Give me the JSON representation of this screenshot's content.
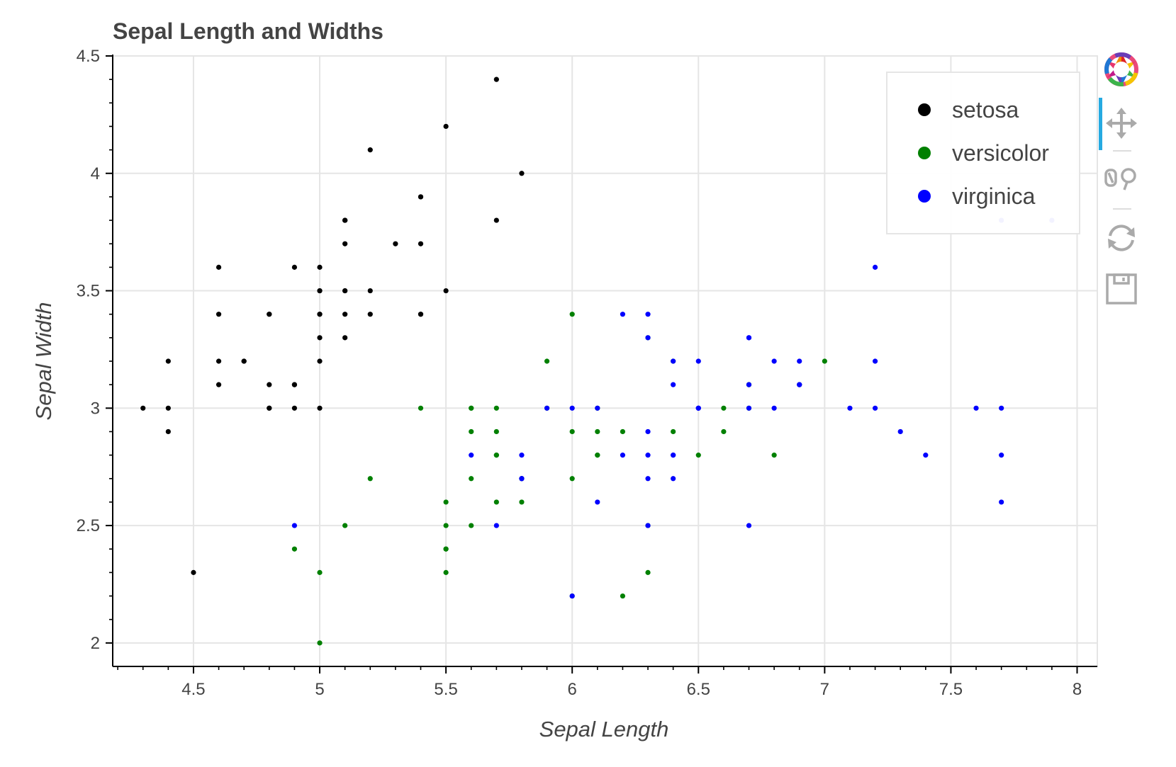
{
  "chart_data": {
    "type": "scatter",
    "title": "Sepal Length and Widths",
    "xlabel": "Sepal Length",
    "ylabel": "Sepal Width",
    "xlim": [
      4.18,
      8.08
    ],
    "ylim": [
      1.9,
      4.5
    ],
    "xticks": [
      "4.5",
      "5",
      "5.5",
      "6",
      "6.5",
      "7",
      "7.5",
      "8"
    ],
    "yticks": [
      "2",
      "2.5",
      "3",
      "3.5",
      "4",
      "4.5"
    ],
    "grid": true,
    "legend_position": "top-right",
    "series": [
      {
        "name": "setosa",
        "color": "#000000",
        "points": [
          [
            5.1,
            3.5
          ],
          [
            4.9,
            3.0
          ],
          [
            4.7,
            3.2
          ],
          [
            4.6,
            3.1
          ],
          [
            5.0,
            3.6
          ],
          [
            5.4,
            3.9
          ],
          [
            4.6,
            3.4
          ],
          [
            5.0,
            3.4
          ],
          [
            4.4,
            2.9
          ],
          [
            4.9,
            3.1
          ],
          [
            5.4,
            3.7
          ],
          [
            4.8,
            3.4
          ],
          [
            4.8,
            3.0
          ],
          [
            4.3,
            3.0
          ],
          [
            5.8,
            4.0
          ],
          [
            5.7,
            4.4
          ],
          [
            5.4,
            3.9
          ],
          [
            5.1,
            3.5
          ],
          [
            5.7,
            3.8
          ],
          [
            5.1,
            3.8
          ],
          [
            5.4,
            3.4
          ],
          [
            5.1,
            3.7
          ],
          [
            4.6,
            3.6
          ],
          [
            5.1,
            3.3
          ],
          [
            4.8,
            3.4
          ],
          [
            5.0,
            3.0
          ],
          [
            5.0,
            3.4
          ],
          [
            5.2,
            3.5
          ],
          [
            5.2,
            3.4
          ],
          [
            4.7,
            3.2
          ],
          [
            4.8,
            3.1
          ],
          [
            5.4,
            3.4
          ],
          [
            5.2,
            4.1
          ],
          [
            5.5,
            4.2
          ],
          [
            4.9,
            3.1
          ],
          [
            5.0,
            3.2
          ],
          [
            5.5,
            3.5
          ],
          [
            4.9,
            3.6
          ],
          [
            4.4,
            3.0
          ],
          [
            5.1,
            3.4
          ],
          [
            5.0,
            3.5
          ],
          [
            4.5,
            2.3
          ],
          [
            4.4,
            3.2
          ],
          [
            5.0,
            3.5
          ],
          [
            5.1,
            3.8
          ],
          [
            4.8,
            3.0
          ],
          [
            5.1,
            3.8
          ],
          [
            4.6,
            3.2
          ],
          [
            5.3,
            3.7
          ],
          [
            5.0,
            3.3
          ]
        ]
      },
      {
        "name": "versicolor",
        "color": "#008000",
        "points": [
          [
            7.0,
            3.2
          ],
          [
            6.4,
            3.2
          ],
          [
            6.9,
            3.1
          ],
          [
            5.5,
            2.3
          ],
          [
            6.5,
            2.8
          ],
          [
            5.7,
            2.8
          ],
          [
            6.3,
            3.3
          ],
          [
            4.9,
            2.4
          ],
          [
            6.6,
            2.9
          ],
          [
            5.2,
            2.7
          ],
          [
            5.0,
            2.0
          ],
          [
            5.9,
            3.0
          ],
          [
            6.0,
            2.2
          ],
          [
            6.1,
            2.9
          ],
          [
            5.6,
            2.9
          ],
          [
            6.7,
            3.1
          ],
          [
            5.6,
            3.0
          ],
          [
            5.8,
            2.7
          ],
          [
            6.2,
            2.2
          ],
          [
            5.6,
            2.5
          ],
          [
            5.9,
            3.2
          ],
          [
            6.1,
            2.8
          ],
          [
            6.3,
            2.5
          ],
          [
            6.1,
            2.8
          ],
          [
            6.4,
            2.9
          ],
          [
            6.6,
            3.0
          ],
          [
            6.8,
            2.8
          ],
          [
            6.7,
            3.0
          ],
          [
            6.0,
            2.9
          ],
          [
            5.7,
            2.6
          ],
          [
            5.5,
            2.4
          ],
          [
            5.5,
            2.4
          ],
          [
            5.8,
            2.7
          ],
          [
            6.0,
            2.7
          ],
          [
            5.4,
            3.0
          ],
          [
            6.0,
            3.4
          ],
          [
            6.7,
            3.1
          ],
          [
            6.3,
            2.3
          ],
          [
            5.6,
            3.0
          ],
          [
            5.5,
            2.5
          ],
          [
            5.5,
            2.6
          ],
          [
            6.1,
            3.0
          ],
          [
            5.8,
            2.6
          ],
          [
            5.0,
            2.3
          ],
          [
            5.6,
            2.7
          ],
          [
            5.7,
            3.0
          ],
          [
            5.7,
            2.9
          ],
          [
            6.2,
            2.9
          ],
          [
            5.1,
            2.5
          ],
          [
            5.7,
            2.8
          ]
        ]
      },
      {
        "name": "virginica",
        "color": "#0000ff",
        "points": [
          [
            6.3,
            3.3
          ],
          [
            5.8,
            2.7
          ],
          [
            7.1,
            3.0
          ],
          [
            6.3,
            2.9
          ],
          [
            6.5,
            3.0
          ],
          [
            7.6,
            3.0
          ],
          [
            4.9,
            2.5
          ],
          [
            7.3,
            2.9
          ],
          [
            6.7,
            2.5
          ],
          [
            7.2,
            3.6
          ],
          [
            6.5,
            3.2
          ],
          [
            6.4,
            2.7
          ],
          [
            6.8,
            3.0
          ],
          [
            5.7,
            2.5
          ],
          [
            5.8,
            2.8
          ],
          [
            6.4,
            3.2
          ],
          [
            6.5,
            3.0
          ],
          [
            7.7,
            3.8
          ],
          [
            7.7,
            2.6
          ],
          [
            6.0,
            2.2
          ],
          [
            6.9,
            3.2
          ],
          [
            5.6,
            2.8
          ],
          [
            7.7,
            2.8
          ],
          [
            6.3,
            2.7
          ],
          [
            6.7,
            3.3
          ],
          [
            7.2,
            3.2
          ],
          [
            6.2,
            2.8
          ],
          [
            6.1,
            3.0
          ],
          [
            6.4,
            2.8
          ],
          [
            7.2,
            3.0
          ],
          [
            7.4,
            2.8
          ],
          [
            7.9,
            3.8
          ],
          [
            6.4,
            2.8
          ],
          [
            6.3,
            2.8
          ],
          [
            6.1,
            2.6
          ],
          [
            7.7,
            3.0
          ],
          [
            6.3,
            3.4
          ],
          [
            6.4,
            3.1
          ],
          [
            6.0,
            3.0
          ],
          [
            6.9,
            3.1
          ],
          [
            6.7,
            3.1
          ],
          [
            6.9,
            3.1
          ],
          [
            5.8,
            2.7
          ],
          [
            6.8,
            3.2
          ],
          [
            6.7,
            3.3
          ],
          [
            6.7,
            3.0
          ],
          [
            6.3,
            2.5
          ],
          [
            6.5,
            3.0
          ],
          [
            6.2,
            3.4
          ],
          [
            5.9,
            3.0
          ]
        ]
      }
    ]
  },
  "toolbar": {
    "tools": [
      "bokeh-logo-icon",
      "pan-icon",
      "box-zoom-icon",
      "reset-icon",
      "save-icon"
    ],
    "active": "pan-icon"
  }
}
